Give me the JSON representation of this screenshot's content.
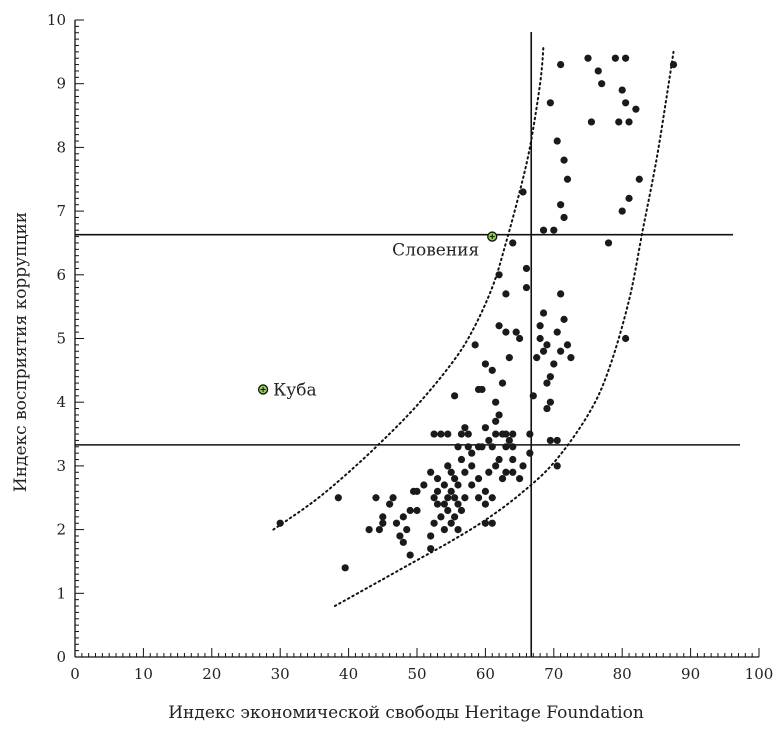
{
  "chart_data": {
    "type": "scatter",
    "xlabel": "Индекс экономической свободы Heritage Foundation",
    "ylabel": "Индекс восприятия коррупции",
    "xlim": [
      0,
      100
    ],
    "ylim": [
      0,
      10
    ],
    "x_ticks": [
      "0",
      "10",
      "20",
      "30",
      "40",
      "50",
      "60",
      "70",
      "80",
      "90",
      "100"
    ],
    "y_ticks": [
      "0",
      "1",
      "2",
      "3",
      "4",
      "5",
      "6",
      "7",
      "8",
      "9",
      "10"
    ],
    "grid": false,
    "colors": {
      "points": "#1a1a1a",
      "highlight_fill": "#8fd14f",
      "lines": "#111111"
    },
    "reference_lines": {
      "vertical_x": 66.7,
      "horizontal_y": [
        6.63,
        3.33
      ]
    },
    "band_upper": [
      [
        29,
        2.0
      ],
      [
        35,
        2.45
      ],
      [
        40,
        2.9
      ],
      [
        45,
        3.4
      ],
      [
        50,
        3.95
      ],
      [
        55,
        4.6
      ],
      [
        58,
        5.1
      ],
      [
        61,
        5.8
      ],
      [
        63,
        6.5
      ],
      [
        65,
        7.3
      ],
      [
        66.5,
        8.0
      ],
      [
        68,
        9.0
      ],
      [
        68.5,
        9.6
      ]
    ],
    "band_lower": [
      [
        38,
        0.8
      ],
      [
        45,
        1.22
      ],
      [
        50,
        1.52
      ],
      [
        55,
        1.82
      ],
      [
        60,
        2.15
      ],
      [
        65,
        2.55
      ],
      [
        70,
        3.05
      ],
      [
        75,
        3.8
      ],
      [
        78,
        4.5
      ],
      [
        81,
        5.6
      ],
      [
        83,
        6.7
      ],
      [
        85,
        7.8
      ],
      [
        86.5,
        8.8
      ],
      [
        87.5,
        9.5
      ]
    ],
    "highlighted": [
      {
        "label": "Словения",
        "x": 61,
        "y": 6.6
      },
      {
        "label": "Куба",
        "x": 27.5,
        "y": 4.2
      }
    ],
    "points": [
      [
        30,
        2.1
      ],
      [
        38.5,
        2.5
      ],
      [
        39.5,
        1.4
      ],
      [
        43,
        2.0
      ],
      [
        44,
        2.5
      ],
      [
        44.5,
        2.0
      ],
      [
        45,
        2.1
      ],
      [
        45,
        2.2
      ],
      [
        46,
        2.4
      ],
      [
        46.5,
        2.5
      ],
      [
        47,
        2.1
      ],
      [
        47.5,
        1.9
      ],
      [
        48,
        1.8
      ],
      [
        48,
        2.2
      ],
      [
        48.5,
        2.0
      ],
      [
        49,
        1.6
      ],
      [
        49,
        2.3
      ],
      [
        49.5,
        2.6
      ],
      [
        50,
        2.6
      ],
      [
        50,
        2.3
      ],
      [
        51,
        2.7
      ],
      [
        52,
        1.9
      ],
      [
        52.5,
        2.1
      ],
      [
        52,
        1.7
      ],
      [
        52.5,
        2.5
      ],
      [
        52,
        2.9
      ],
      [
        53,
        2.4
      ],
      [
        53,
        2.6
      ],
      [
        53,
        2.8
      ],
      [
        53.5,
        2.2
      ],
      [
        54,
        2.0
      ],
      [
        54,
        2.4
      ],
      [
        54,
        2.7
      ],
      [
        54.5,
        2.3
      ],
      [
        54.5,
        2.5
      ],
      [
        54.5,
        3.0
      ],
      [
        55,
        2.1
      ],
      [
        55,
        2.6
      ],
      [
        55,
        2.9
      ],
      [
        55.5,
        2.2
      ],
      [
        55.5,
        2.5
      ],
      [
        55.5,
        2.8
      ],
      [
        56,
        2.4
      ],
      [
        56,
        2.7
      ],
      [
        56,
        2.0
      ],
      [
        56.5,
        2.3
      ],
      [
        56.5,
        3.1
      ],
      [
        57,
        2.5
      ],
      [
        57,
        2.9
      ],
      [
        57.5,
        3.3
      ],
      [
        58,
        2.7
      ],
      [
        58,
        3.0
      ],
      [
        59,
        2.5
      ],
      [
        59,
        2.8
      ],
      [
        59,
        3.3
      ],
      [
        60,
        2.1
      ],
      [
        60,
        2.4
      ],
      [
        60,
        2.6
      ],
      [
        60.5,
        2.9
      ],
      [
        61,
        2.1
      ],
      [
        61,
        2.5
      ],
      [
        61.5,
        3.0
      ],
      [
        62,
        3.1
      ],
      [
        62.5,
        2.8
      ],
      [
        63,
        2.9
      ],
      [
        63,
        3.3
      ],
      [
        64,
        2.9
      ],
      [
        64,
        3.3
      ],
      [
        65,
        2.8
      ],
      [
        65.5,
        3.0
      ],
      [
        66.5,
        3.2
      ],
      [
        52.5,
        3.5
      ],
      [
        53.5,
        3.5
      ],
      [
        54.5,
        3.5
      ],
      [
        55.5,
        4.1
      ],
      [
        56,
        3.3
      ],
      [
        56.5,
        3.5
      ],
      [
        57,
        3.6
      ],
      [
        57.5,
        3.5
      ],
      [
        58,
        3.2
      ],
      [
        59,
        4.2
      ],
      [
        59.5,
        3.3
      ],
      [
        60,
        3.6
      ],
      [
        60.5,
        3.4
      ],
      [
        61,
        3.3
      ],
      [
        61.5,
        3.5
      ],
      [
        61.5,
        3.7
      ],
      [
        62,
        3.8
      ],
      [
        62.5,
        3.5
      ],
      [
        63,
        3.5
      ],
      [
        63.5,
        3.4
      ],
      [
        64,
        3.5
      ],
      [
        64,
        3.1
      ],
      [
        58.5,
        4.9
      ],
      [
        59.5,
        4.2
      ],
      [
        60,
        4.6
      ],
      [
        61,
        4.5
      ],
      [
        61.5,
        4.0
      ],
      [
        62.5,
        4.3
      ],
      [
        62,
        5.2
      ],
      [
        63,
        5.1
      ],
      [
        63.5,
        4.7
      ],
      [
        64.5,
        5.1
      ],
      [
        65,
        5.0
      ],
      [
        62,
        6.0
      ],
      [
        63,
        5.7
      ],
      [
        64,
        6.5
      ],
      [
        66,
        5.8
      ],
      [
        66,
        6.1
      ],
      [
        65.5,
        7.3
      ],
      [
        67,
        4.1
      ],
      [
        66.5,
        3.5
      ],
      [
        67.5,
        4.7
      ],
      [
        68,
        5.0
      ],
      [
        68,
        5.2
      ],
      [
        68.5,
        4.8
      ],
      [
        68.5,
        5.4
      ],
      [
        69,
        4.9
      ],
      [
        69.5,
        4.4
      ],
      [
        70,
        4.6
      ],
      [
        70.5,
        5.1
      ],
      [
        71,
        5.7
      ],
      [
        71.5,
        5.3
      ],
      [
        72,
        4.9
      ],
      [
        72.5,
        4.7
      ],
      [
        71,
        4.8
      ],
      [
        69.5,
        4.0
      ],
      [
        69,
        4.3
      ],
      [
        69,
        3.9
      ],
      [
        69.5,
        3.4
      ],
      [
        70.5,
        3.4
      ],
      [
        70.5,
        3.0
      ],
      [
        68.5,
        6.7
      ],
      [
        69.5,
        8.7
      ],
      [
        70,
        6.7
      ],
      [
        70.5,
        8.1
      ],
      [
        71,
        7.1
      ],
      [
        71.5,
        7.8
      ],
      [
        71.5,
        6.9
      ],
      [
        72,
        7.5
      ],
      [
        71,
        9.3
      ],
      [
        75,
        9.4
      ],
      [
        75.5,
        8.4
      ],
      [
        76.5,
        9.2
      ],
      [
        77,
        9.0
      ],
      [
        78,
        6.5
      ],
      [
        79,
        9.4
      ],
      [
        79.5,
        8.4
      ],
      [
        80,
        7.0
      ],
      [
        80,
        8.9
      ],
      [
        80.5,
        8.7
      ],
      [
        80.5,
        9.4
      ],
      [
        81,
        7.2
      ],
      [
        81,
        8.4
      ],
      [
        82,
        8.6
      ],
      [
        82.5,
        7.5
      ],
      [
        80.5,
        5.0
      ],
      [
        87.5,
        9.3
      ]
    ]
  }
}
